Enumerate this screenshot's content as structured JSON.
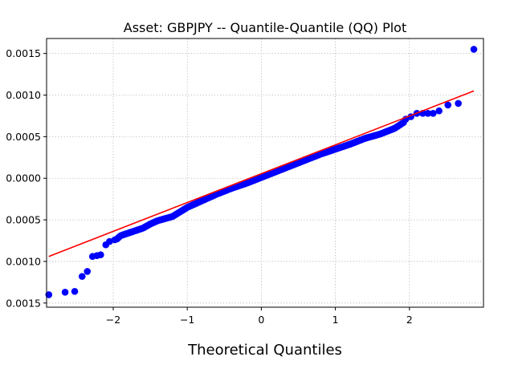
{
  "chart_data": {
    "type": "scatter",
    "title": "Asset: GBPJPY -- Quantile-Quantile (QQ) Plot",
    "xlabel": "Theoretical Quantiles",
    "ylabel": "",
    "xlim": [
      -2.9,
      3.0
    ],
    "ylim": [
      -0.00155,
      0.00168
    ],
    "grid": true,
    "x_ticks": [
      -2,
      -1,
      0,
      1,
      2
    ],
    "x_tick_labels": [
      "−2",
      "−1",
      "0",
      "1",
      "2"
    ],
    "y_ticks": [
      0.0015,
      0.001,
      0.0005,
      0.0,
      -0.0005,
      -0.001,
      -0.0015
    ],
    "y_tick_labels": [
      "0.0015",
      "0.0010",
      "0.0005",
      "0.0000",
      "0.0005",
      "0.0010",
      "0.0015"
    ],
    "reference_line": {
      "color": "#ff0000",
      "x": [
        -2.87,
        2.87
      ],
      "y": [
        -0.00094,
        0.00105
      ]
    },
    "point_color": "#0000ff",
    "tail_points": [
      {
        "x": -2.87,
        "y": -0.0014
      },
      {
        "x": -2.65,
        "y": -0.00137
      },
      {
        "x": -2.52,
        "y": -0.00136
      },
      {
        "x": -2.42,
        "y": -0.00118
      },
      {
        "x": -2.35,
        "y": -0.00112
      },
      {
        "x": -2.28,
        "y": -0.00094
      },
      {
        "x": -2.22,
        "y": -0.00093
      },
      {
        "x": -2.17,
        "y": -0.00092
      },
      {
        "x": -2.1,
        "y": -0.0008
      },
      {
        "x": -2.05,
        "y": -0.00076
      },
      {
        "x": -1.98,
        "y": -0.00074
      },
      {
        "x": 1.95,
        "y": 0.00071
      },
      {
        "x": 2.02,
        "y": 0.00074
      },
      {
        "x": 2.1,
        "y": 0.00078
      },
      {
        "x": 2.18,
        "y": 0.00078
      },
      {
        "x": 2.25,
        "y": 0.00078
      },
      {
        "x": 2.32,
        "y": 0.00078
      },
      {
        "x": 2.4,
        "y": 0.00081
      },
      {
        "x": 2.52,
        "y": 0.00088
      },
      {
        "x": 2.66,
        "y": 0.0009
      },
      {
        "x": 2.87,
        "y": 0.00155
      }
    ],
    "body_points": {
      "x_range": [
        -1.95,
        1.92
      ],
      "count": 210,
      "points_xy": [
        [
          -1.95,
          -0.00073
        ],
        [
          -1.9,
          -0.00069
        ],
        [
          -1.8,
          -0.00066
        ],
        [
          -1.7,
          -0.00063
        ],
        [
          -1.6,
          -0.0006
        ],
        [
          -1.5,
          -0.00055
        ],
        [
          -1.4,
          -0.00051
        ],
        [
          -1.2,
          -0.00046
        ],
        [
          -1.0,
          -0.00035
        ],
        [
          -0.8,
          -0.00027
        ],
        [
          -0.6,
          -0.00019
        ],
        [
          -0.4,
          -0.00012
        ],
        [
          -0.2,
          -6e-05
        ],
        [
          0.0,
          1e-05
        ],
        [
          0.2,
          8e-05
        ],
        [
          0.4,
          0.00015
        ],
        [
          0.6,
          0.00022
        ],
        [
          0.8,
          0.00029
        ],
        [
          1.0,
          0.00035
        ],
        [
          1.2,
          0.00041
        ],
        [
          1.4,
          0.00048
        ],
        [
          1.6,
          0.00053
        ],
        [
          1.8,
          0.0006
        ],
        [
          1.92,
          0.00067
        ]
      ]
    }
  }
}
